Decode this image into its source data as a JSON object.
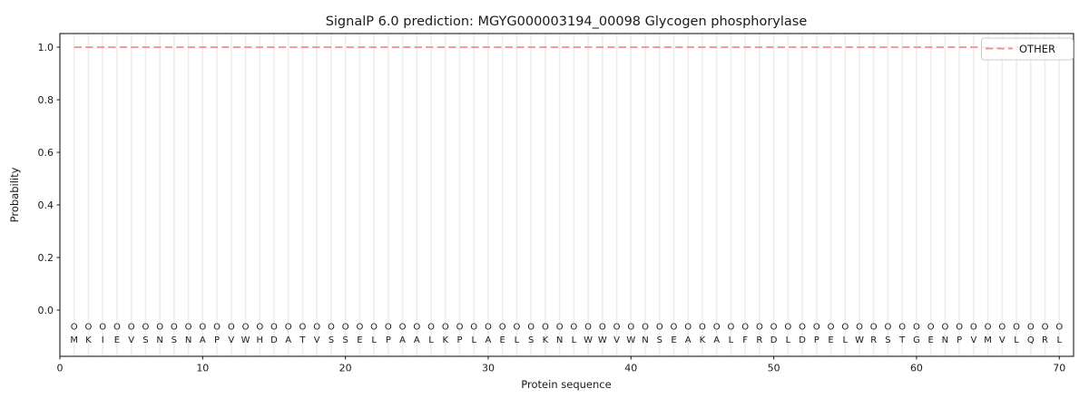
{
  "figure": {
    "title": "SignalP 6.0 prediction: MGYG000003194_00098 Glycogen phosphorylase",
    "xlabel": "Protein sequence",
    "ylabel": "Probability"
  },
  "legend": {
    "label": "OTHER",
    "position": "upper right",
    "line_style": "dashed"
  },
  "colors": {
    "other_line": "#f08585",
    "grid": "#ededed",
    "spine": "#1a1a1a",
    "tick_text": "#1a1a1a",
    "tag_letter": "#999999",
    "sequence_letter": "#111111",
    "legend_border": "#cccccc",
    "background": "#ffffff"
  },
  "chart_data": {
    "type": "line",
    "title": "SignalP 6.0 prediction: MGYG000003194_00098 Glycogen phosphorylase",
    "xlabel": "Protein sequence",
    "ylabel": "Probability",
    "xlim": [
      0,
      71
    ],
    "ylim": [
      -0.176,
      1.052
    ],
    "xticks": [
      0,
      10,
      20,
      30,
      40,
      50,
      60,
      70
    ],
    "yticks": [
      0.0,
      0.2,
      0.4,
      0.6,
      0.8,
      1.0
    ],
    "grid": "vertical line at every residue position, no horizontal gridlines",
    "legend_position": "upper right",
    "series": [
      {
        "name": "OTHER",
        "color": "#f08585",
        "linestyle": "dashed",
        "x_start": 1,
        "values": [
          1.0,
          1.0,
          1.0,
          1.0,
          1.0,
          1.0,
          1.0,
          1.0,
          1.0,
          1.0,
          1.0,
          1.0,
          1.0,
          1.0,
          1.0,
          1.0,
          1.0,
          1.0,
          1.0,
          1.0,
          1.0,
          1.0,
          1.0,
          1.0,
          1.0,
          1.0,
          1.0,
          1.0,
          1.0,
          1.0,
          1.0,
          1.0,
          1.0,
          1.0,
          1.0,
          1.0,
          1.0,
          1.0,
          1.0,
          1.0,
          1.0,
          1.0,
          1.0,
          1.0,
          1.0,
          1.0,
          1.0,
          1.0,
          1.0,
          1.0,
          1.0,
          1.0,
          1.0,
          1.0,
          1.0,
          1.0,
          1.0,
          1.0,
          1.0,
          1.0,
          1.0,
          1.0,
          1.0,
          1.0,
          1.0,
          1.0,
          1.0,
          1.0,
          1.0,
          1.0
        ]
      }
    ],
    "sequence": "MKIEVSNSNAPVWHDATVSSELPAALKPLAELSKNLWWVWNSEAKALFRDLDPELWRSTGENPVMVLQRL",
    "per_position_tags": "OOOOOOOOOOOOOOOOOOOOOOOOOOOOOOOOOOOOOOOOOOOOOOOOOOOOOOOOOOOOOOOOOOOOOO",
    "tag_row_y": -0.062,
    "sequence_row_y": -0.112
  }
}
